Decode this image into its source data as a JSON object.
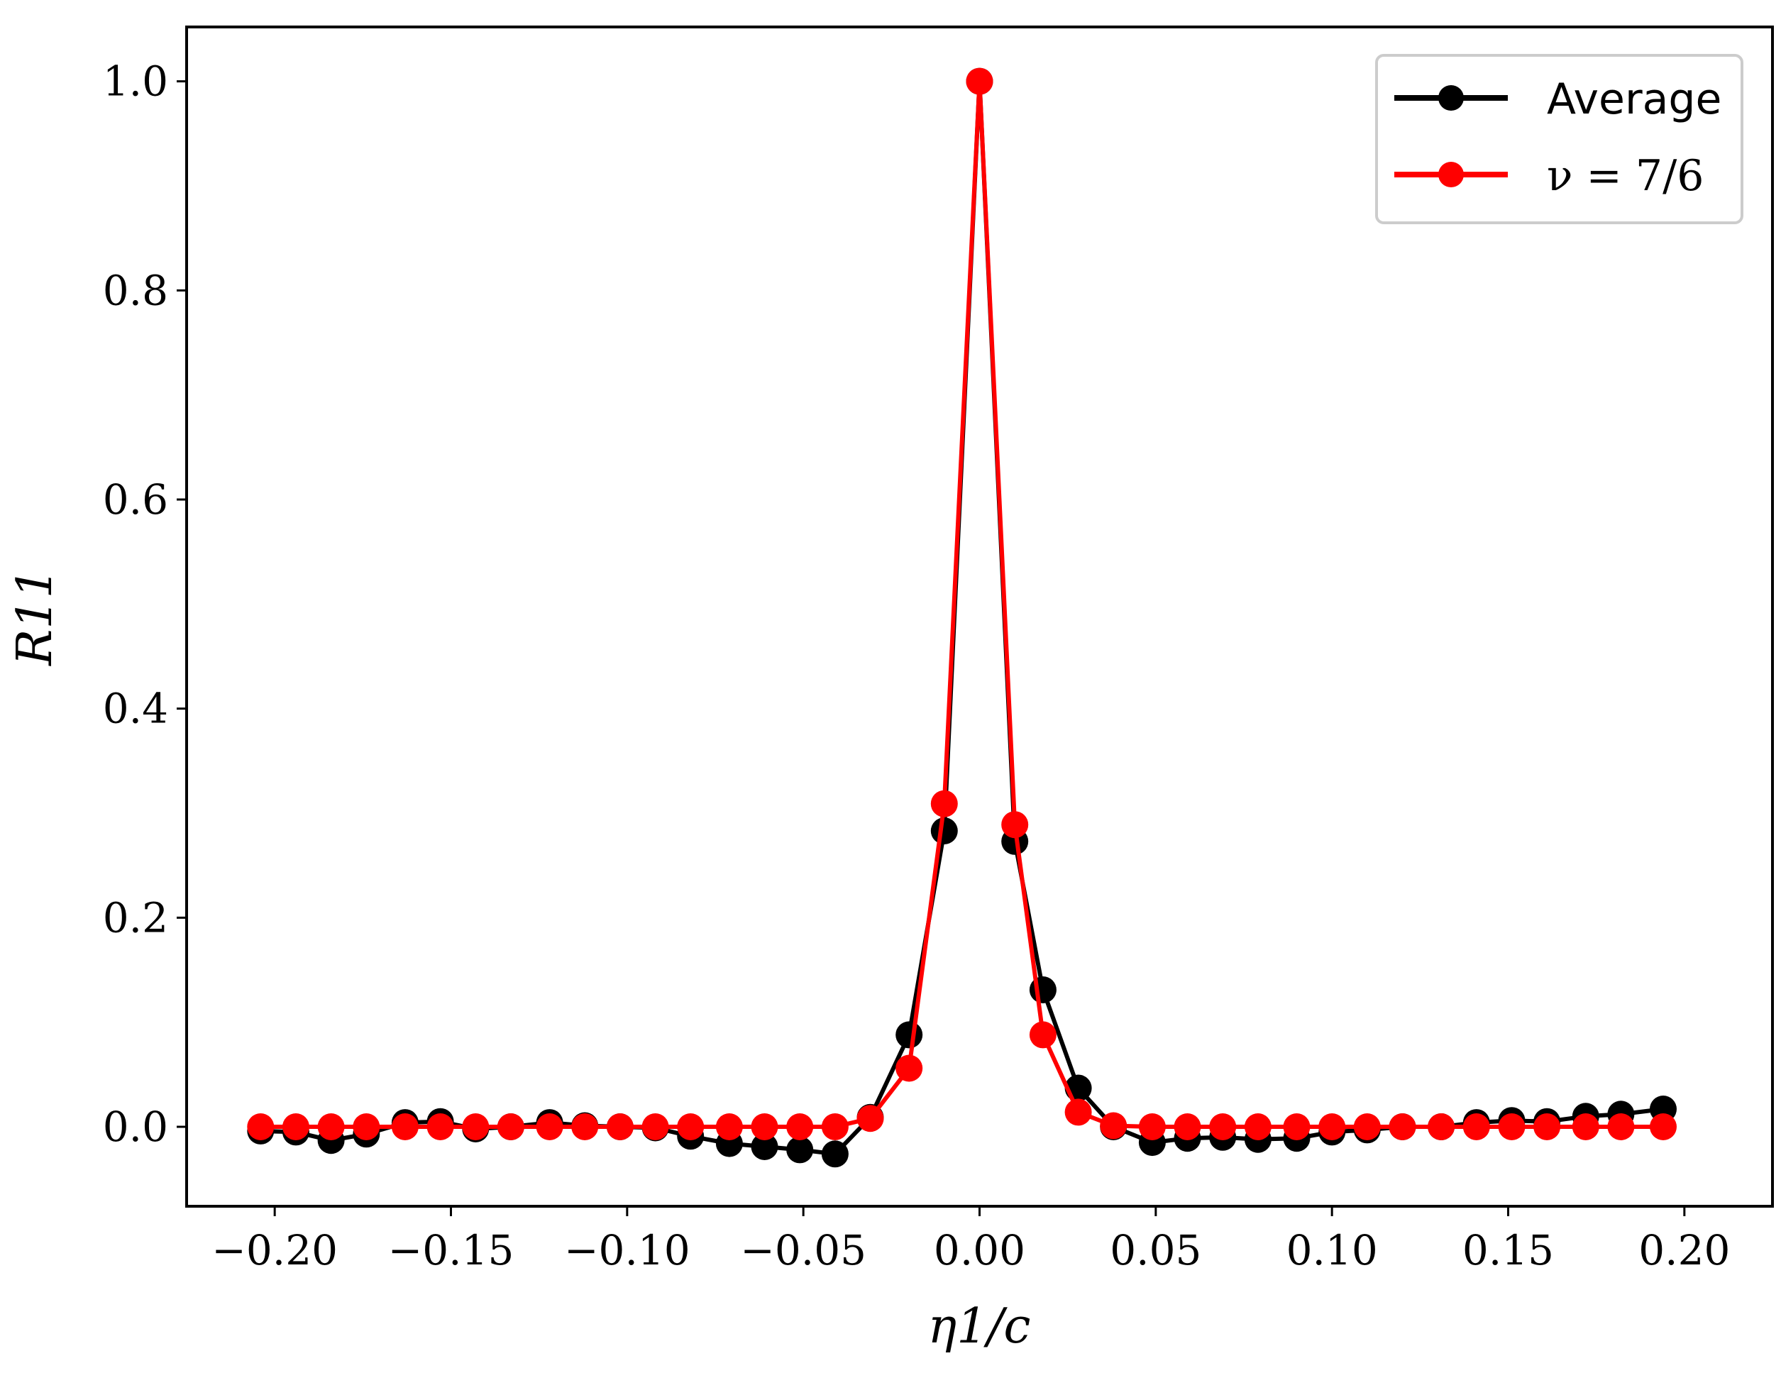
{
  "chart_data": {
    "type": "line",
    "xlabel": "η1/c",
    "ylabel": "R11",
    "xlim": [
      -0.225,
      0.225
    ],
    "ylim": [
      -0.076,
      1.052
    ],
    "xticks": [
      -0.2,
      -0.15,
      -0.1,
      -0.05,
      0.0,
      0.05,
      0.1,
      0.15,
      0.2
    ],
    "xtick_labels": [
      "−0.20",
      "−0.15",
      "−0.10",
      "−0.05",
      "0.00",
      "0.05",
      "0.10",
      "0.15",
      "0.20"
    ],
    "yticks": [
      0.0,
      0.2,
      0.4,
      0.6,
      0.8,
      1.0
    ],
    "ytick_labels": [
      "0.0",
      "0.2",
      "0.4",
      "0.6",
      "0.8",
      "1.0"
    ],
    "grid": false,
    "legend_position": "top-right",
    "series": [
      {
        "name": "Average",
        "color": "#000000",
        "x": [
          -0.204,
          -0.194,
          -0.184,
          -0.174,
          -0.163,
          -0.153,
          -0.143,
          -0.133,
          -0.122,
          -0.112,
          -0.102,
          -0.092,
          -0.082,
          -0.071,
          -0.061,
          -0.051,
          -0.041,
          -0.031,
          -0.02,
          -0.01,
          0.0,
          0.01,
          0.018,
          0.028,
          0.038,
          0.049,
          0.059,
          0.069,
          0.079,
          0.09,
          0.1,
          0.11,
          0.12,
          0.131,
          0.141,
          0.151,
          0.161,
          0.172,
          0.182,
          0.194
        ],
        "y": [
          -0.004,
          -0.005,
          -0.013,
          -0.007,
          0.004,
          0.005,
          -0.002,
          0.0,
          0.004,
          0.001,
          0.0,
          -0.001,
          -0.009,
          -0.016,
          -0.019,
          -0.022,
          -0.026,
          0.009,
          0.088,
          0.283,
          1.0,
          0.273,
          0.131,
          0.037,
          0.0,
          -0.015,
          -0.011,
          -0.01,
          -0.012,
          -0.011,
          -0.005,
          -0.003,
          0.0,
          0.0,
          0.004,
          0.006,
          0.005,
          0.01,
          0.012,
          0.017
        ]
      },
      {
        "name": "ν = 7/6",
        "color": "#ff0000",
        "x": [
          -0.204,
          -0.194,
          -0.184,
          -0.174,
          -0.163,
          -0.153,
          -0.143,
          -0.133,
          -0.122,
          -0.112,
          -0.102,
          -0.092,
          -0.082,
          -0.071,
          -0.061,
          -0.051,
          -0.041,
          -0.031,
          -0.02,
          -0.01,
          0.0,
          0.01,
          0.018,
          0.028,
          0.038,
          0.049,
          0.059,
          0.069,
          0.079,
          0.09,
          0.1,
          0.11,
          0.12,
          0.131,
          0.141,
          0.151,
          0.161,
          0.172,
          0.182,
          0.194
        ],
        "y": [
          0.0,
          0.0,
          0.0,
          0.0,
          0.0,
          0.0,
          0.0,
          0.0,
          0.0,
          0.0,
          0.0,
          0.0,
          0.0,
          0.0,
          0.0,
          0.0,
          0.0,
          0.008,
          0.056,
          0.309,
          1.0,
          0.289,
          0.088,
          0.014,
          0.001,
          0.0,
          0.0,
          0.0,
          0.0,
          0.0,
          0.0,
          0.0,
          0.0,
          0.0,
          0.0,
          0.0,
          0.0,
          0.0,
          0.0,
          0.0
        ]
      }
    ]
  }
}
